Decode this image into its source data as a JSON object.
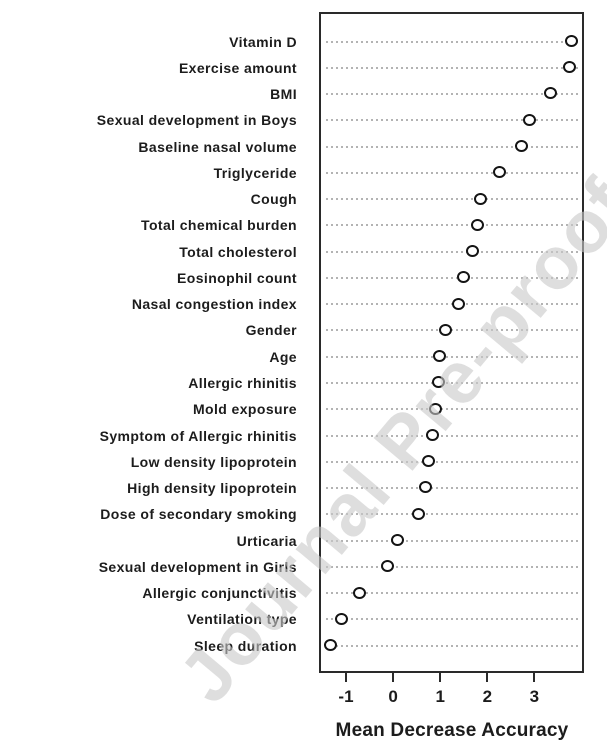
{
  "watermark": "Journal Pre-proof",
  "chart_data": {
    "type": "scatter",
    "subtype": "dotchart-variable-importance",
    "title": "",
    "xlabel": "Mean Decrease Accuracy",
    "ylabel": "",
    "categories": [
      "Vitamin D",
      "Exercise amount",
      "BMI",
      "Sexual development in Boys",
      "Baseline nasal volume",
      "Triglyceride",
      "Cough",
      "Total chemical burden",
      "Total cholesterol",
      "Eosinophil count",
      "Nasal congestion index",
      "Gender",
      "Age",
      "Allergic rhinitis",
      "Mold exposure",
      "Symptom of Allergic rhinitis",
      "Low density lipoprotein",
      "High density lipoprotein",
      "Dose of secondary smoking",
      "Urticaria",
      "Sexual development in Girls",
      "Allergic conjunctivitis",
      "Ventilation type",
      "Sleep duration"
    ],
    "values": [
      3.79,
      3.76,
      3.36,
      2.91,
      2.74,
      2.27,
      1.87,
      1.8,
      1.7,
      1.5,
      1.41,
      1.13,
      1.0,
      0.98,
      0.92,
      0.85,
      0.77,
      0.71,
      0.56,
      0.11,
      -0.11,
      -0.71,
      -1.08,
      -1.32
    ],
    "xticks": [
      -1,
      0,
      1,
      2,
      3
    ],
    "xtick_labels": [
      "-1",
      "0",
      "1",
      "2",
      "3"
    ],
    "xlim": [
      -1.53,
      4.01
    ],
    "grid": "dotted-horizontal",
    "marker": "open-circle",
    "marker_color": "#141414",
    "grid_color": "#b3b3b3",
    "box_color": "#2a2a2a",
    "legend": null
  }
}
